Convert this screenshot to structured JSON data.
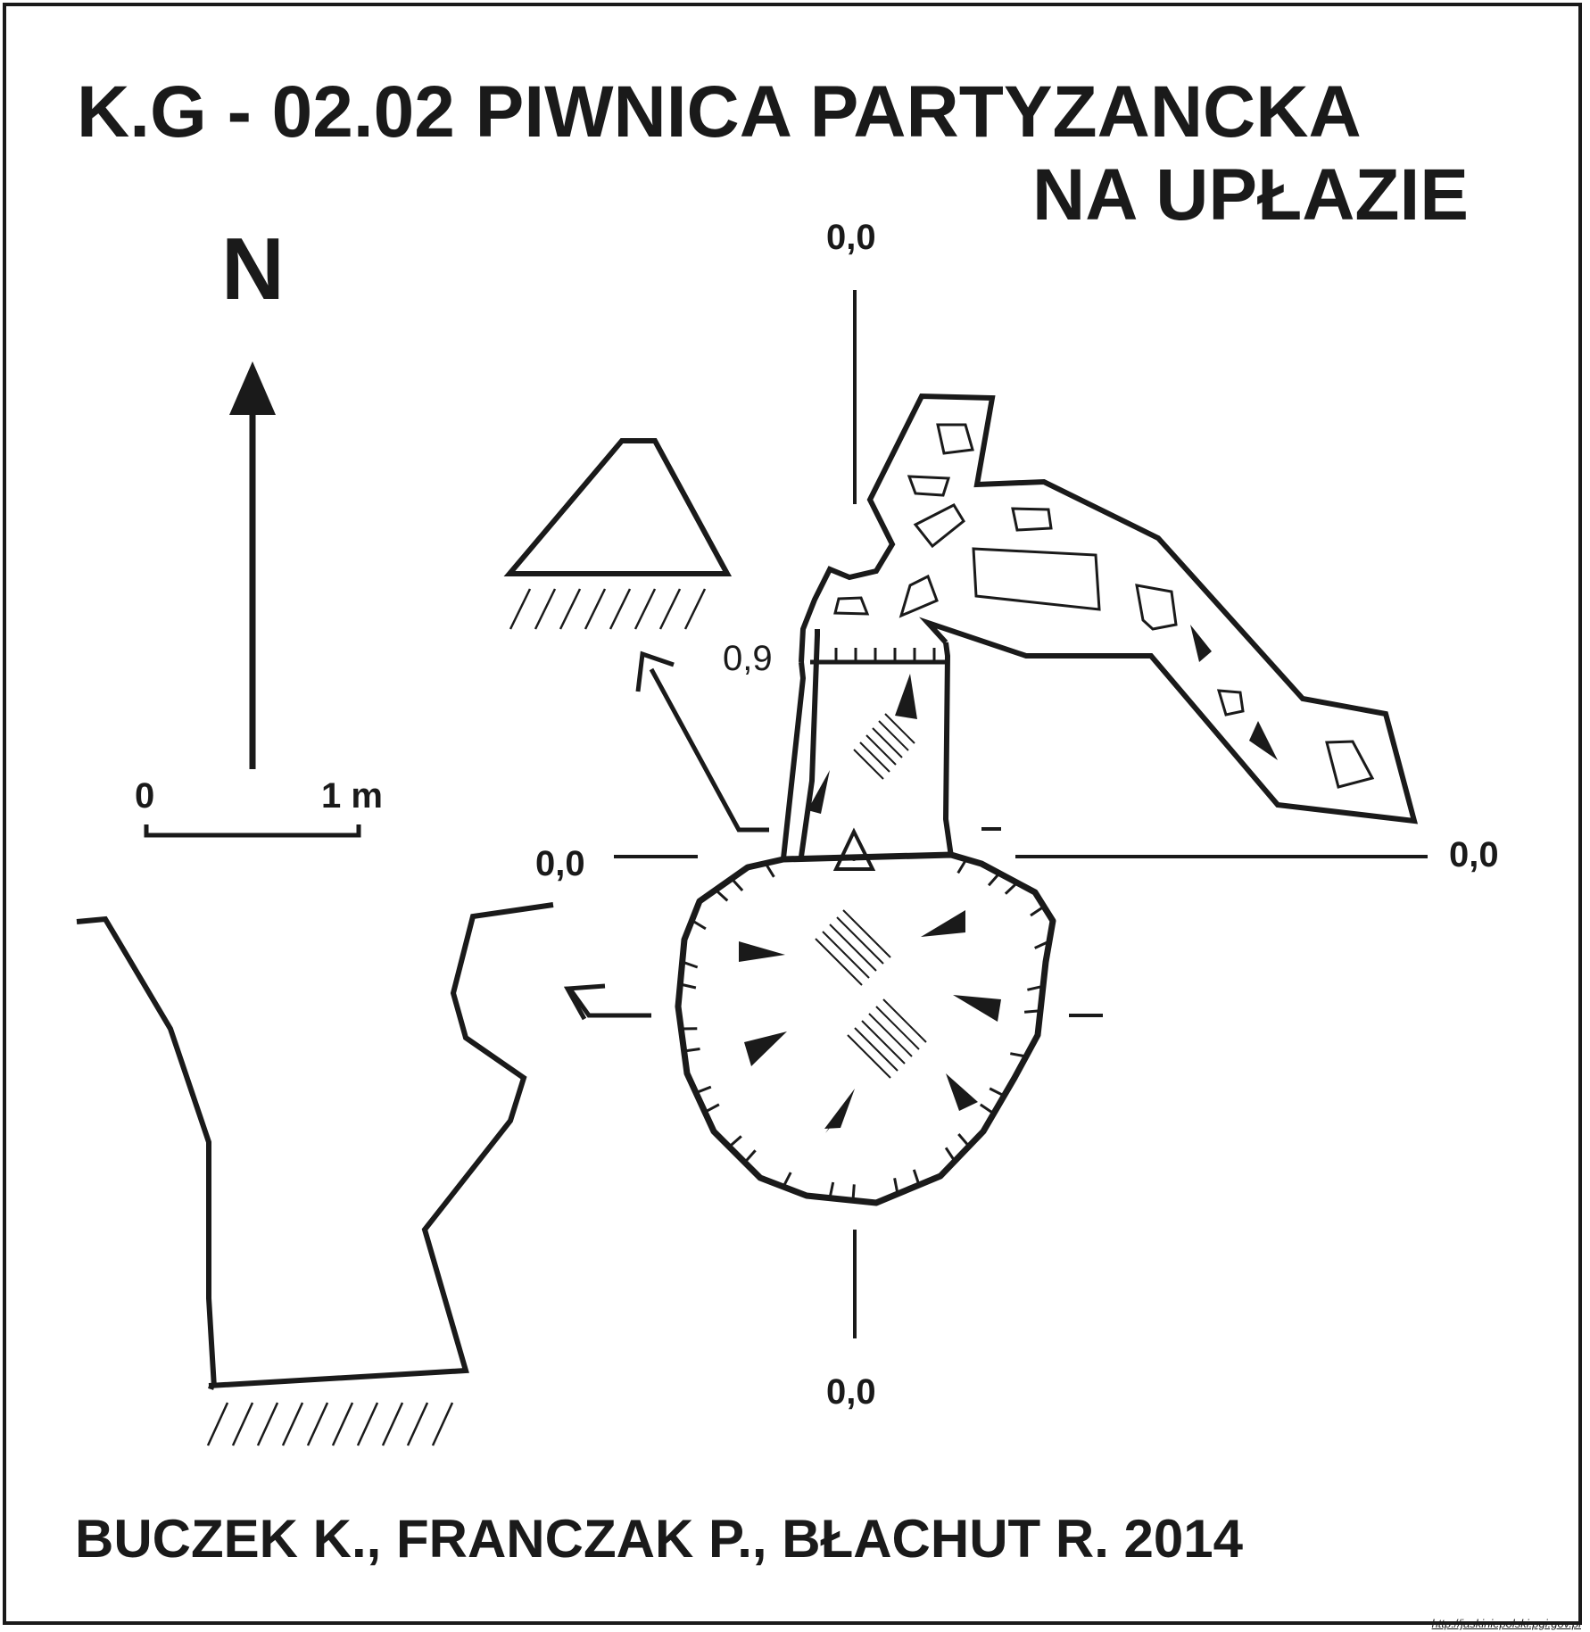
{
  "title": {
    "line1": "K.G - 02.02  PIWNICA PARTYZANCKA",
    "line2": "NA UPŁAZIE"
  },
  "north_label": "N",
  "scale": {
    "start": "0",
    "end": "1 m"
  },
  "depths": {
    "top": "0,0",
    "left": "0,0",
    "right": "0,0",
    "bottom": "0,0",
    "ledge": "0,9"
  },
  "authors": "BUCZEK K., FRANCZAK P.,  BŁACHUT R. 2014",
  "watermark": "http://jaskiniepolski.pgi.gov.pl",
  "colors": {
    "ink": "#1a1a1a",
    "paper": "#ffffff"
  }
}
